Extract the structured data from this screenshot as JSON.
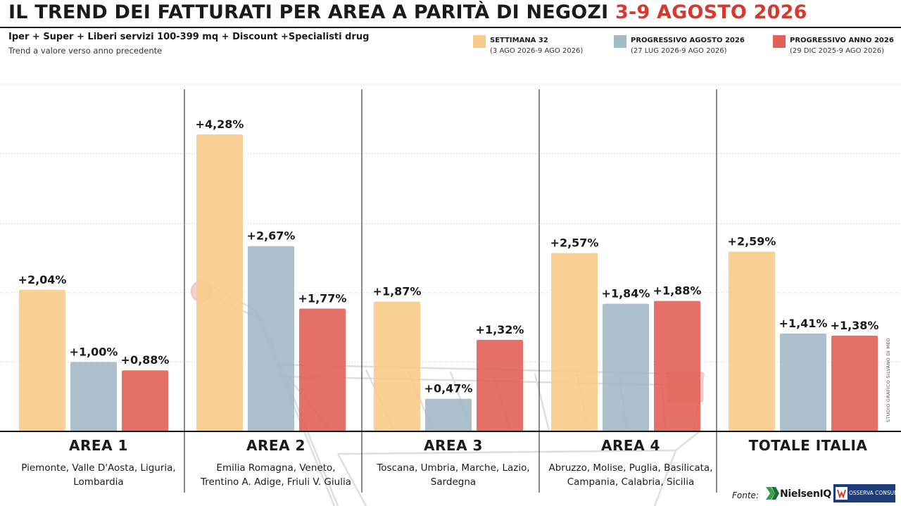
{
  "header": {
    "title_main": "IL TREND DEI FATTURATI PER AREA A PARITÀ DI NEGOZI",
    "title_dates": "3-9 AGOSTO 2026",
    "subtitle": "Iper + Super + Liberi servizi 100-399 mq + Discount +Specialisti drug",
    "subtitle2": "Trend a valore verso anno precedente"
  },
  "legend": [
    {
      "title": "SETTIMANA 32",
      "range": "(3 AGO 2026-9 AGO 2026)",
      "color": "#f7cb8b"
    },
    {
      "title": "PROGRESSIVO AGOSTO 2026",
      "range": "(27 LUG 2026-9 AGO 2026)",
      "color": "#a2b9c6"
    },
    {
      "title": "PROGRESSIVO ANNO 2026",
      "range": "(29 DIC 2025-9 AGO 2026)",
      "color": "#e26157"
    }
  ],
  "areas": [
    {
      "name": "AREA 1",
      "regions": [
        "Piemonte, Valle D'Aosta, Liguria,",
        "Lombardia"
      ]
    },
    {
      "name": "AREA 2",
      "regions": [
        "Emilia Romagna, Veneto,",
        "Trentino A. Adige, Friuli V. Giulia"
      ]
    },
    {
      "name": "AREA 3",
      "regions": [
        "Toscana, Umbria, Marche, Lazio,",
        "Sardegna"
      ]
    },
    {
      "name": "AREA 4",
      "regions": [
        "Abruzzo, Molise, Puglia, Basilicata,",
        "Campania, Calabria, Sicilia"
      ]
    },
    {
      "name": "TOTALE ITALIA",
      "regions": []
    }
  ],
  "chart_data": {
    "type": "bar",
    "categories": [
      "AREA 1",
      "AREA 2",
      "AREA 3",
      "AREA 4",
      "TOTALE ITALIA"
    ],
    "series": [
      {
        "name": "SETTIMANA 32",
        "values": [
          2.04,
          4.28,
          1.87,
          2.57,
          2.59
        ],
        "labels": [
          "+2,04%",
          "+4,28%",
          "+1,87%",
          "+2,57%",
          "+2,59%"
        ],
        "color": "#f7cb8b"
      },
      {
        "name": "PROGRESSIVO AGOSTO 2026",
        "values": [
          1.0,
          2.67,
          0.47,
          1.84,
          1.41
        ],
        "labels": [
          "+1,00%",
          "+2,67%",
          "+0,47%",
          "+1,84%",
          "+1,41%"
        ],
        "color": "#a2b9c6"
      },
      {
        "name": "PROGRESSIVO ANNO 2026",
        "values": [
          0.88,
          1.77,
          1.32,
          1.88,
          1.38
        ],
        "labels": [
          "+0,88%",
          "+1,77%",
          "+1,32%",
          "+1,88%",
          "+1,38%"
        ],
        "color": "#e26157"
      }
    ],
    "ylim": [
      0,
      5
    ],
    "grid": true,
    "legend_position": "top-right"
  },
  "credit": "STUDIO GRAFICO SILVANO DI MEO",
  "footer": {
    "source_label": "Fonte:",
    "nielsen": "NielsenIQ",
    "osserva": "OSSERVA CONSUMI"
  }
}
